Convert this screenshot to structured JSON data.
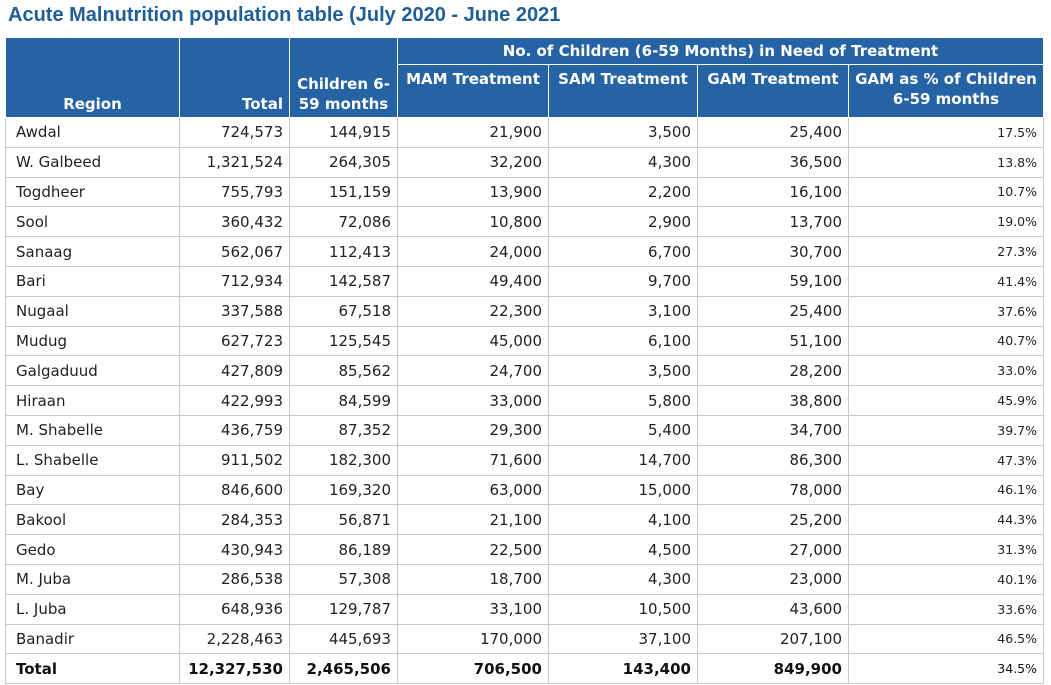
{
  "title": "Acute Malnutrition population table (July 2020 - June 2021",
  "headers": {
    "region": "Region",
    "total": "Total",
    "children": "Children 6-59 months",
    "group": "No. of Children (6-59 Months) in Need of Treatment",
    "mam": "MAM Treatment",
    "sam": "SAM Treatment",
    "gam": "GAM Treatment",
    "gam_pct": "GAM as % of Children 6-59 months"
  },
  "rows": [
    {
      "region": "Awdal",
      "total": "724,573",
      "children": "144,915",
      "mam": "21,900",
      "sam": "3,500",
      "gam": "25,400",
      "pct": "17.5%"
    },
    {
      "region": "W. Galbeed",
      "total": "1,321,524",
      "children": "264,305",
      "mam": "32,200",
      "sam": "4,300",
      "gam": "36,500",
      "pct": "13.8%"
    },
    {
      "region": "Togdheer",
      "total": "755,793",
      "children": "151,159",
      "mam": "13,900",
      "sam": "2,200",
      "gam": "16,100",
      "pct": "10.7%"
    },
    {
      "region": "Sool",
      "total": "360,432",
      "children": "72,086",
      "mam": "10,800",
      "sam": "2,900",
      "gam": "13,700",
      "pct": "19.0%"
    },
    {
      "region": "Sanaag",
      "total": "562,067",
      "children": "112,413",
      "mam": "24,000",
      "sam": "6,700",
      "gam": "30,700",
      "pct": "27.3%"
    },
    {
      "region": "Bari",
      "total": "712,934",
      "children": "142,587",
      "mam": "49,400",
      "sam": "9,700",
      "gam": "59,100",
      "pct": "41.4%"
    },
    {
      "region": "Nugaal",
      "total": "337,588",
      "children": "67,518",
      "mam": "22,300",
      "sam": "3,100",
      "gam": "25,400",
      "pct": "37.6%"
    },
    {
      "region": "Mudug",
      "total": "627,723",
      "children": "125,545",
      "mam": "45,000",
      "sam": "6,100",
      "gam": "51,100",
      "pct": "40.7%"
    },
    {
      "region": "Galgaduud",
      "total": "427,809",
      "children": "85,562",
      "mam": "24,700",
      "sam": "3,500",
      "gam": "28,200",
      "pct": "33.0%"
    },
    {
      "region": "Hiraan",
      "total": "422,993",
      "children": "84,599",
      "mam": "33,000",
      "sam": "5,800",
      "gam": "38,800",
      "pct": "45.9%"
    },
    {
      "region": "M. Shabelle",
      "total": "436,759",
      "children": "87,352",
      "mam": "29,300",
      "sam": "5,400",
      "gam": "34,700",
      "pct": "39.7%"
    },
    {
      "region": "L. Shabelle",
      "total": "911,502",
      "children": "182,300",
      "mam": "71,600",
      "sam": "14,700",
      "gam": "86,300",
      "pct": "47.3%"
    },
    {
      "region": "Bay",
      "total": "846,600",
      "children": "169,320",
      "mam": "63,000",
      "sam": "15,000",
      "gam": "78,000",
      "pct": "46.1%"
    },
    {
      "region": "Bakool",
      "total": "284,353",
      "children": "56,871",
      "mam": "21,100",
      "sam": "4,100",
      "gam": "25,200",
      "pct": "44.3%"
    },
    {
      "region": "Gedo",
      "total": "430,943",
      "children": "86,189",
      "mam": "22,500",
      "sam": "4,500",
      "gam": "27,000",
      "pct": "31.3%"
    },
    {
      "region": "M. Juba",
      "total": "286,538",
      "children": "57,308",
      "mam": "18,700",
      "sam": "4,300",
      "gam": "23,000",
      "pct": "40.1%"
    },
    {
      "region": "L. Juba",
      "total": "648,936",
      "children": "129,787",
      "mam": "33,100",
      "sam": "10,500",
      "gam": "43,600",
      "pct": "33.6%"
    },
    {
      "region": "Banadir",
      "total": "2,228,463",
      "children": "445,693",
      "mam": "170,000",
      "sam": "37,100",
      "gam": "207,100",
      "pct": "46.5%"
    }
  ],
  "totals": {
    "region": "Total",
    "total": "12,327,530",
    "children": "2,465,506",
    "mam": "706,500",
    "sam": "143,400",
    "gam": "849,900",
    "pct": "34.5%"
  }
}
